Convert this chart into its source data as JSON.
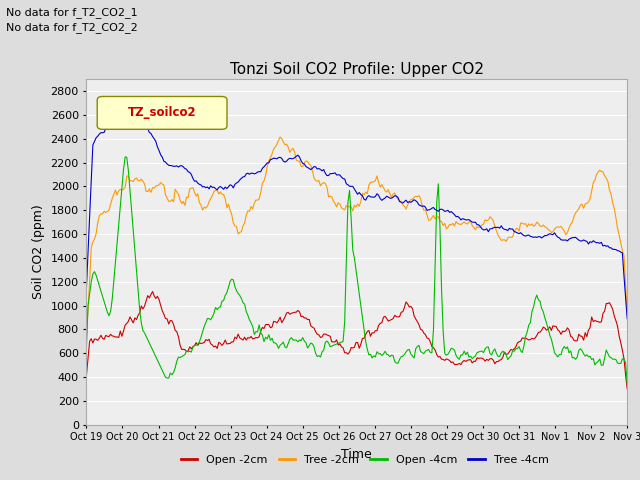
{
  "title": "Tonzi Soil CO2 Profile: Upper CO2",
  "ylabel": "Soil CO2 (ppm)",
  "xlabel": "Time",
  "no_data_text": [
    "No data for f_T2_CO2_1",
    "No data for f_T2_CO2_2"
  ],
  "legend_label": "TZ_soilco2",
  "ylim": [
    0,
    2900
  ],
  "yticks": [
    0,
    200,
    400,
    600,
    800,
    1000,
    1200,
    1400,
    1600,
    1800,
    2000,
    2200,
    2400,
    2600,
    2800
  ],
  "colors": {
    "open_2cm": "#cc0000",
    "tree_2cm": "#ff9900",
    "open_4cm": "#00bb00",
    "tree_4cm": "#0000cc"
  },
  "bg_color": "#dddddd",
  "plot_bg_color": "#eeeeee",
  "grid_color": "#ffffff",
  "n_points": 336,
  "x_tick_labels": [
    "Oct 19",
    "Oct 20",
    "Oct 21",
    "Oct 22",
    "Oct 23",
    "Oct 24",
    "Oct 25",
    "Oct 26",
    "Oct 27",
    "Oct 28",
    "Oct 29",
    "Oct 30",
    "Oct 31",
    "Nov 1",
    "Nov 2",
    "Nov 3"
  ],
  "legend_entries": [
    "Open -2cm",
    "Tree -2cm",
    "Open -4cm",
    "Tree -4cm"
  ]
}
